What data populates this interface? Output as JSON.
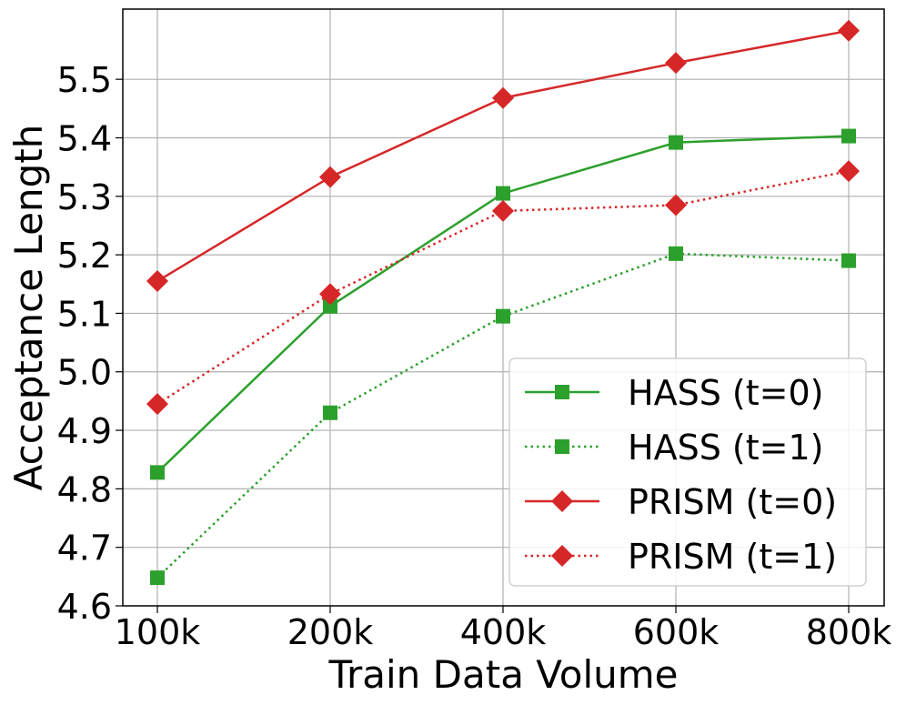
{
  "chart_data": {
    "type": "line",
    "title": "",
    "xlabel": "Train Data Volume",
    "ylabel": "Acceptance Length",
    "categories": [
      "100k",
      "200k",
      "400k",
      "600k",
      "800k"
    ],
    "ylim": [
      4.6,
      5.62
    ],
    "yticks": [
      4.6,
      4.7,
      4.8,
      4.9,
      5.0,
      5.1,
      5.2,
      5.3,
      5.4,
      5.5
    ],
    "ytick_labels": [
      "4.6",
      "4.7",
      "4.8",
      "4.9",
      "5.0",
      "5.1",
      "5.2",
      "5.3",
      "5.4",
      "5.5"
    ],
    "grid": true,
    "legend_position": "lower-right",
    "series": [
      {
        "name": "HASS (t=0)",
        "values": [
          4.828,
          5.112,
          5.305,
          5.392,
          5.403
        ],
        "color": "#2ca02c",
        "linestyle": "solid",
        "marker": "square"
      },
      {
        "name": "HASS (t=1)",
        "values": [
          4.648,
          4.93,
          5.095,
          5.202,
          5.19
        ],
        "color": "#2ca02c",
        "linestyle": "dotted",
        "marker": "square"
      },
      {
        "name": "PRISM (t=0)",
        "values": [
          5.155,
          5.333,
          5.468,
          5.528,
          5.583
        ],
        "color": "#d62728",
        "linestyle": "solid",
        "marker": "diamond"
      },
      {
        "name": "PRISM (t=1)",
        "values": [
          4.945,
          5.133,
          5.275,
          5.285,
          5.343
        ],
        "color": "#d62728",
        "linestyle": "dotted",
        "marker": "diamond"
      }
    ]
  }
}
